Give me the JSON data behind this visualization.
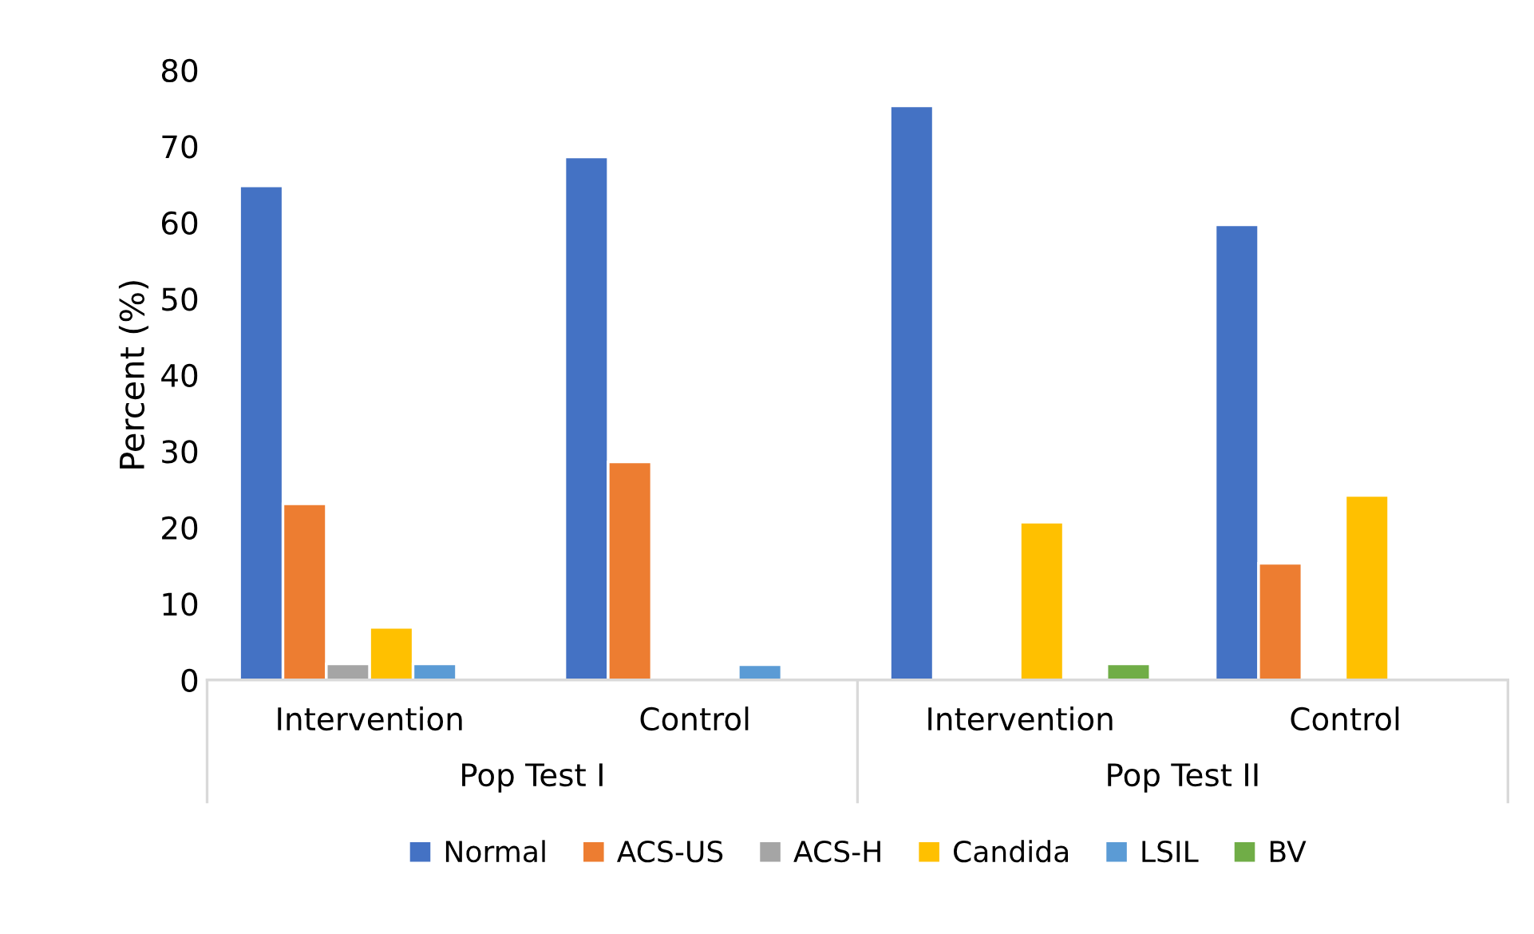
{
  "chart_data": {
    "type": "bar",
    "ylabel": "Percent (%)",
    "categories": [
      "Intervention",
      "Control",
      "Intervention",
      "Control"
    ],
    "series": [
      {
        "name": "Normal",
        "color": "#4472c4",
        "values": [
          64.8,
          68.6,
          75.3,
          59.7
        ]
      },
      {
        "name": "ACS-US",
        "color": "#ed7d31",
        "values": [
          23.1,
          28.6,
          null,
          15.3
        ]
      },
      {
        "name": "ACS-H",
        "color": "#a5a5a5",
        "values": [
          2.1,
          null,
          null,
          null
        ]
      },
      {
        "name": "Candida",
        "color": "#ffc000",
        "values": [
          6.9,
          null,
          20.7,
          24.2
        ]
      },
      {
        "name": "LSIL",
        "color": "#5b9bd5",
        "values": [
          2.1,
          2.0,
          null,
          null
        ]
      },
      {
        "name": "BV",
        "color": "#70ad47",
        "values": [
          null,
          null,
          2.1,
          null
        ]
      }
    ],
    "annotations": [
      "Pop Test I",
      "Pop Test II"
    ],
    "ylim": [
      0,
      80
    ],
    "yticks": [
      0,
      10,
      20,
      30,
      40,
      50,
      60,
      70,
      80
    ],
    "grid": false,
    "legend": "bottom"
  }
}
